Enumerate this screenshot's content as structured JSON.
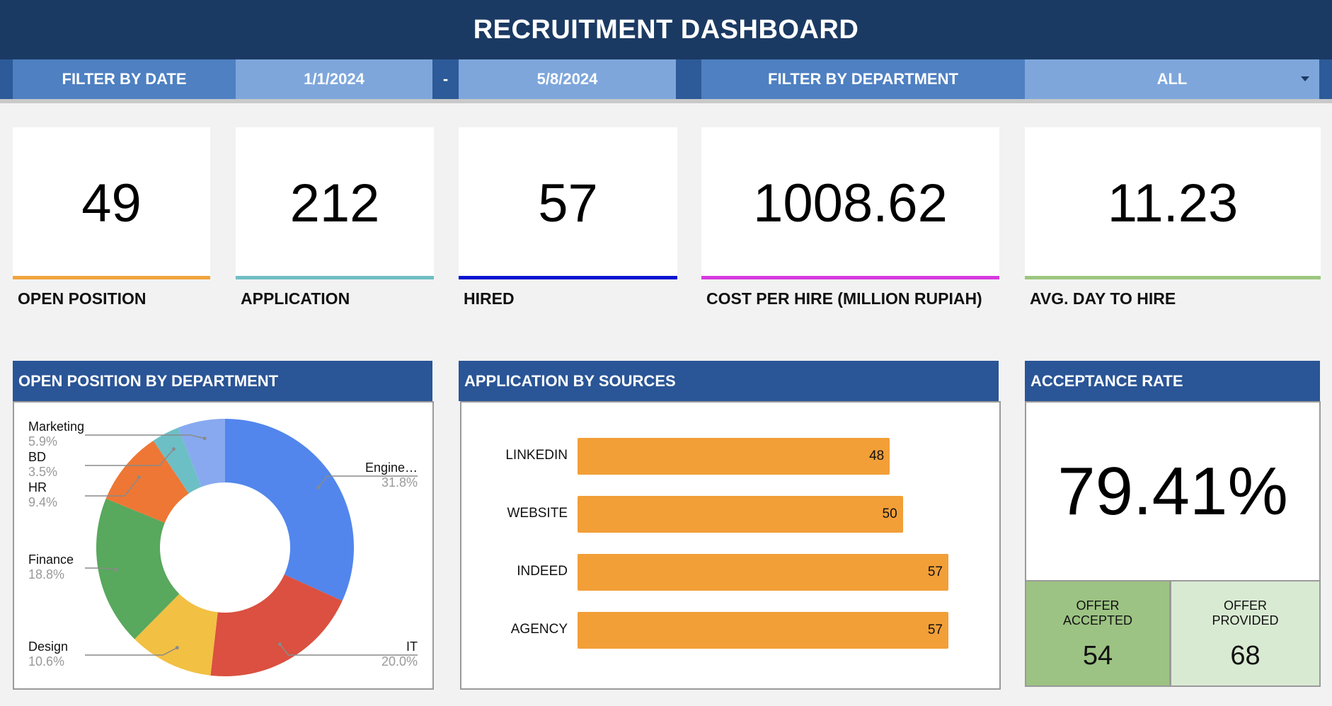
{
  "header": {
    "title": "RECRUITMENT DASHBOARD"
  },
  "filters": {
    "date_label": "FILTER BY DATE",
    "date_start": "1/1/2024",
    "date_separator": "-",
    "date_end": "5/8/2024",
    "department_label": "FILTER BY DEPARTMENT",
    "department_value": "ALL",
    "dropdown_icon": "triangle-down-icon"
  },
  "kpis": [
    {
      "value": "49",
      "label": "OPEN POSITION",
      "color": "#f0a43c"
    },
    {
      "value": "212",
      "label": "APPLICATION",
      "color": "#6fbfc4"
    },
    {
      "value": "57",
      "label": "HIRED",
      "color": "#0a12d0"
    },
    {
      "value": "1008.62",
      "label": "COST PER HIRE (MILLION RUPIAH)",
      "color": "#d63adf"
    },
    {
      "value": "11.23",
      "label": "AVG. DAY TO HIRE",
      "color": "#9cc77e"
    }
  ],
  "panels": {
    "open_position_title": "OPEN POSITION BY DEPARTMENT",
    "sources_title": "APPLICATION BY SOURCES",
    "acceptance_title": "ACCEPTANCE RATE"
  },
  "acceptance": {
    "rate": "79.41%",
    "accepted_label_1": "OFFER",
    "accepted_label_2": "ACCEPTED",
    "accepted_value": "54",
    "provided_label_1": "OFFER",
    "provided_label_2": "PROVIDED",
    "provided_value": "68",
    "accepted_color": "#9cc383",
    "provided_color": "#d9ead3"
  },
  "chart_data": [
    {
      "type": "pie",
      "title": "OPEN POSITION BY DEPARTMENT",
      "donut": true,
      "categories": [
        "Engine…",
        "IT",
        "Design",
        "Finance",
        "HR",
        "BD",
        "Marketing"
      ],
      "values": [
        31.8,
        20.0,
        10.6,
        18.8,
        9.4,
        3.5,
        5.9
      ],
      "value_labels": [
        "31.8%",
        "20.0%",
        "10.6%",
        "18.8%",
        "9.4%",
        "3.5%",
        "5.9%"
      ],
      "colors": [
        "#5286ec",
        "#db5040",
        "#f2c043",
        "#58a85d",
        "#ee7735",
        "#6dbfc6",
        "#88a9ef"
      ]
    },
    {
      "type": "bar",
      "orientation": "horizontal",
      "title": "APPLICATION BY SOURCES",
      "categories": [
        "LINKEDIN",
        "WEBSITE",
        "INDEED",
        "AGENCY"
      ],
      "values": [
        48,
        50,
        57,
        57
      ],
      "color": "#f29f38",
      "xlim": [
        0,
        57
      ]
    }
  ]
}
